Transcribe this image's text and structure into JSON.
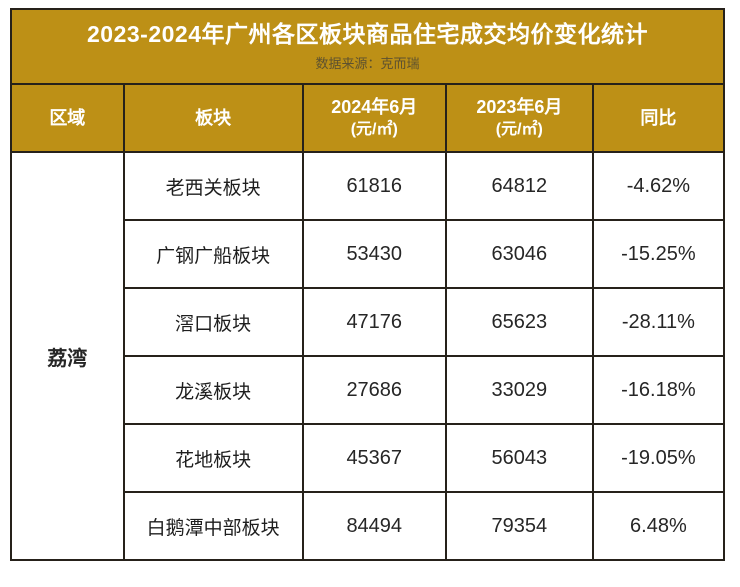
{
  "title": "2023-2024年广州各区板块商品住宅成交均价变化统计",
  "subtitle": "数据来源：克而瑞",
  "colors": {
    "banner_bg": "#bd9016",
    "banner_text": "#ffffff",
    "subtitle_text": "#5d512f",
    "border": "#26211a",
    "cell_text": "#262626"
  },
  "table": {
    "headers": {
      "region": "区域",
      "block": "板块",
      "col_2024": "2024年6月",
      "col_2024_unit": "(元/㎡)",
      "col_2023": "2023年6月",
      "col_2023_unit": "(元/㎡)",
      "yoy": "同比"
    },
    "region_label": "荔湾",
    "rows": [
      {
        "block": "老西关板块",
        "price_2024": "61816",
        "price_2023": "64812",
        "yoy": "-4.62%"
      },
      {
        "block": "广钢广船板块",
        "price_2024": "53430",
        "price_2023": "63046",
        "yoy": "-15.25%"
      },
      {
        "block": "滘口板块",
        "price_2024": "47176",
        "price_2023": "65623",
        "yoy": "-28.11%"
      },
      {
        "block": "龙溪板块",
        "price_2024": "27686",
        "price_2023": "33029",
        "yoy": "-16.18%"
      },
      {
        "block": "花地板块",
        "price_2024": "45367",
        "price_2023": "56043",
        "yoy": "-19.05%"
      },
      {
        "block": "白鹅潭中部板块",
        "price_2024": "84494",
        "price_2023": "79354",
        "yoy": "6.48%"
      }
    ]
  },
  "chart_data": {
    "type": "table",
    "title": "2023-2024年广州各区板块商品住宅成交均价变化统计",
    "source": "数据来源：克而瑞",
    "columns": [
      "区域",
      "板块",
      "2024年6月(元/㎡)",
      "2023年6月(元/㎡)",
      "同比"
    ],
    "region": "荔湾",
    "rows": [
      [
        "荔湾",
        "老西关板块",
        61816,
        64812,
        "-4.62%"
      ],
      [
        "荔湾",
        "广钢广船板块",
        53430,
        63046,
        "-15.25%"
      ],
      [
        "荔湾",
        "滘口板块",
        47176,
        65623,
        "-28.11%"
      ],
      [
        "荔湾",
        "龙溪板块",
        27686,
        33029,
        "-16.18%"
      ],
      [
        "荔湾",
        "花地板块",
        45367,
        56043,
        "-19.05%"
      ],
      [
        "荔湾",
        "白鹅潭中部板块",
        84494,
        79354,
        "6.48%"
      ]
    ]
  }
}
